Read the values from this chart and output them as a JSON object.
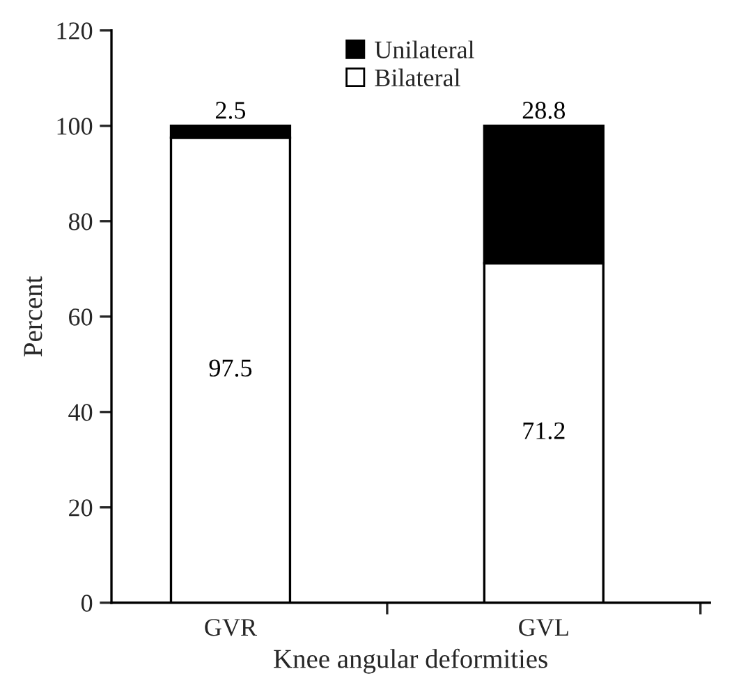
{
  "chart_data": {
    "type": "bar",
    "xlabel": "Knee angular deformities",
    "ylabel": "Percent",
    "categories": [
      "GVR",
      "GVL"
    ],
    "stacked": true,
    "series": [
      {
        "name": "Bilateral",
        "color": "#ffffff",
        "values": [
          97.5,
          71.2
        ]
      },
      {
        "name": "Unilateral",
        "color": "#000000",
        "values": [
          2.5,
          28.8
        ]
      }
    ],
    "ylim": [
      0,
      120
    ],
    "yticks": [
      0,
      20,
      40,
      60,
      80,
      100,
      120
    ],
    "data_labels": true,
    "legend": "top",
    "grid": false
  }
}
